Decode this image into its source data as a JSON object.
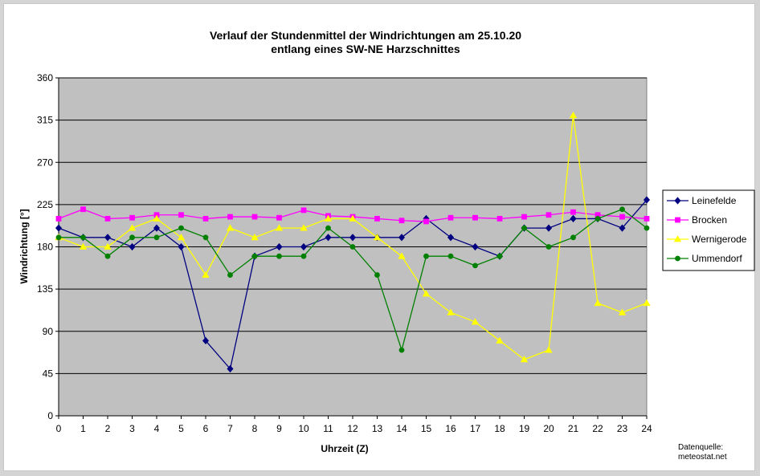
{
  "chart_data": {
    "type": "line",
    "title_line1": "Verlauf der Stundenmittel der Windrichtungen am 25.10.20",
    "title_line2": "entlang eines SW-NE Harzschnittes",
    "xlabel": "Uhrzeit (Z)",
    "ylabel": "Windrichtung [°]",
    "x": [
      0,
      1,
      2,
      3,
      4,
      5,
      6,
      7,
      8,
      9,
      10,
      11,
      12,
      13,
      14,
      15,
      16,
      17,
      18,
      19,
      20,
      21,
      22,
      23,
      24
    ],
    "xlim": [
      0,
      24
    ],
    "ylim": [
      0,
      360
    ],
    "yticks": [
      0,
      45,
      90,
      135,
      180,
      225,
      270,
      315,
      360
    ],
    "grid": true,
    "plot_background": "#c0c0c0",
    "legend_position": "right",
    "series": [
      {
        "name": "Leinefelde",
        "color": "#000080",
        "marker": "diamond",
        "values": [
          200,
          190,
          190,
          180,
          200,
          180,
          80,
          50,
          170,
          180,
          180,
          190,
          190,
          190,
          190,
          210,
          190,
          180,
          170,
          200,
          200,
          210,
          210,
          200,
          230
        ]
      },
      {
        "name": "Brocken",
        "color": "#ff00ff",
        "marker": "square",
        "values": [
          210,
          220,
          210,
          211,
          214,
          214,
          210,
          212,
          212,
          211,
          219,
          213,
          212,
          210,
          208,
          207,
          211,
          211,
          210,
          212,
          214,
          217,
          214,
          212,
          210
        ]
      },
      {
        "name": "Wernigerode",
        "color": "#ffff00",
        "marker": "triangle",
        "values": [
          190,
          180,
          180,
          200,
          210,
          190,
          150,
          200,
          190,
          200,
          200,
          210,
          210,
          190,
          170,
          130,
          110,
          100,
          80,
          60,
          70,
          320,
          120,
          110,
          120
        ]
      },
      {
        "name": "Ummendorf",
        "color": "#008000",
        "marker": "circle",
        "values": [
          190,
          190,
          170,
          190,
          190,
          200,
          190,
          150,
          170,
          170,
          170,
          200,
          180,
          150,
          70,
          170,
          170,
          160,
          170,
          200,
          180,
          190,
          210,
          220,
          200
        ]
      }
    ],
    "source_note_line1": "Datenquelle:",
    "source_note_line2": "meteostat.net"
  }
}
